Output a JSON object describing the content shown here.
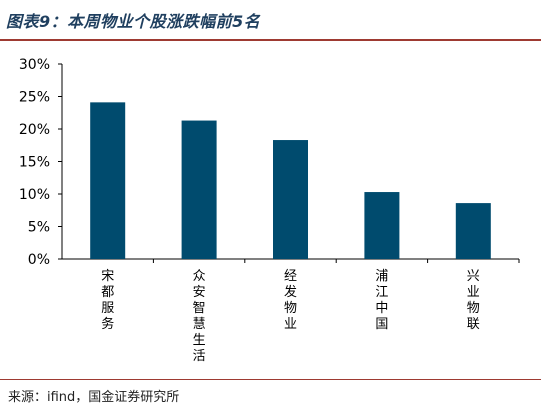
{
  "header": {
    "title": "图表9：本周物业个股涨跌幅前5名"
  },
  "footer": {
    "source": "来源：ifind，国金证券研究所"
  },
  "colors": {
    "bar": "#004b6e",
    "rule": "#9e3a32",
    "title": "#1f3f5f"
  },
  "chart_data": {
    "type": "bar",
    "categories": [
      "宋都服务",
      "众安智慧生活",
      "经发物业",
      "浦江中国",
      "兴业物联"
    ],
    "values": [
      24.1,
      21.3,
      18.3,
      10.3,
      8.6
    ],
    "yticks": [
      "0%",
      "5%",
      "10%",
      "15%",
      "20%",
      "25%",
      "30%"
    ],
    "ylim": [
      0,
      30
    ],
    "grid": false
  }
}
